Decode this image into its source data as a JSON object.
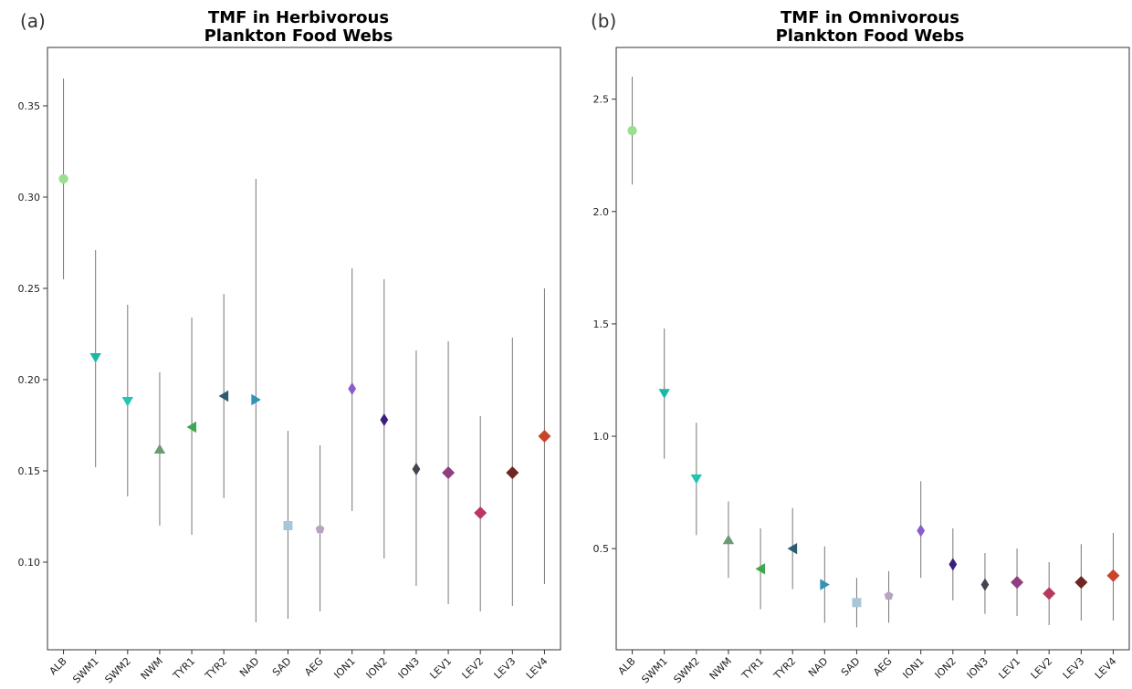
{
  "chart_data": [
    {
      "type": "scatter",
      "panel_label": "(a)",
      "title_lines": [
        "TMF in Herbivorous",
        "Plankton Food Webs"
      ],
      "xlabel": "",
      "ylabel": "",
      "ylim": [
        0.052,
        0.382
      ],
      "yticks": [
        0.1,
        0.15,
        0.2,
        0.25,
        0.3,
        0.35
      ],
      "ytick_labels": [
        "0.10",
        "0.15",
        "0.20",
        "0.25",
        "0.30",
        "0.35"
      ],
      "grid": false,
      "categories": [
        "ALB",
        "SWM1",
        "SWM2",
        "NWM",
        "TYR1",
        "TYR2",
        "NAD",
        "SAD",
        "AEG",
        "ION1",
        "ION2",
        "ION3",
        "LEV1",
        "LEV2",
        "LEV3",
        "LEV4"
      ],
      "points": [
        {
          "category": "ALB",
          "y": 0.31,
          "low": 0.255,
          "high": 0.365,
          "color": "#98e08f",
          "marker": "circle"
        },
        {
          "category": "SWM1",
          "y": 0.212,
          "low": 0.152,
          "high": 0.271,
          "color": "#1ab8a6",
          "marker": "triangle-down"
        },
        {
          "category": "SWM2",
          "y": 0.188,
          "low": 0.136,
          "high": 0.241,
          "color": "#21c6b0",
          "marker": "triangle-down"
        },
        {
          "category": "NWM",
          "y": 0.162,
          "low": 0.12,
          "high": 0.204,
          "color": "#6c9a72",
          "marker": "triangle-up"
        },
        {
          "category": "TYR1",
          "y": 0.174,
          "low": 0.115,
          "high": 0.234,
          "color": "#3fa84f",
          "marker": "triangle-left"
        },
        {
          "category": "TYR2",
          "y": 0.191,
          "low": 0.135,
          "high": 0.247,
          "color": "#2c5e72",
          "marker": "triangle-left"
        },
        {
          "category": "NAD",
          "y": 0.189,
          "low": 0.067,
          "high": 0.31,
          "color": "#3194b6",
          "marker": "triangle-right"
        },
        {
          "category": "SAD",
          "y": 0.12,
          "low": 0.069,
          "high": 0.172,
          "color": "#a8c6d8",
          "marker": "square"
        },
        {
          "category": "AEG",
          "y": 0.118,
          "low": 0.073,
          "high": 0.164,
          "color": "#b8a4be",
          "marker": "pentagon"
        },
        {
          "category": "ION1",
          "y": 0.195,
          "low": 0.128,
          "high": 0.261,
          "color": "#8a5ccc",
          "marker": "thin-diamond"
        },
        {
          "category": "ION2",
          "y": 0.178,
          "low": 0.102,
          "high": 0.255,
          "color": "#3b1f7e",
          "marker": "thin-diamond"
        },
        {
          "category": "ION3",
          "y": 0.151,
          "low": 0.087,
          "high": 0.216,
          "color": "#444450",
          "marker": "thin-diamond"
        },
        {
          "category": "LEV1",
          "y": 0.149,
          "low": 0.077,
          "high": 0.221,
          "color": "#8e3f80",
          "marker": "diamond"
        },
        {
          "category": "LEV2",
          "y": 0.127,
          "low": 0.073,
          "high": 0.18,
          "color": "#b8385e",
          "marker": "diamond"
        },
        {
          "category": "LEV3",
          "y": 0.149,
          "low": 0.076,
          "high": 0.223,
          "color": "#6e2620",
          "marker": "diamond"
        },
        {
          "category": "LEV4",
          "y": 0.169,
          "low": 0.088,
          "high": 0.25,
          "color": "#c8452c",
          "marker": "diamond"
        }
      ]
    },
    {
      "type": "scatter",
      "panel_label": "(b)",
      "title_lines": [
        "TMF in Omnivorous",
        "Plankton Food Webs"
      ],
      "xlabel": "",
      "ylabel": "",
      "ylim": [
        0.05,
        2.73
      ],
      "yticks": [
        0.5,
        1.0,
        1.5,
        2.0,
        2.5
      ],
      "ytick_labels": [
        "0.5",
        "1.0",
        "1.5",
        "2.0",
        "2.5"
      ],
      "grid": false,
      "categories": [
        "ALB",
        "SWM1",
        "SWM2",
        "NWM",
        "TYR1",
        "TYR2",
        "NAD",
        "SAD",
        "AEG",
        "ION1",
        "ION2",
        "ION3",
        "LEV1",
        "LEV2",
        "LEV3",
        "LEV4"
      ],
      "points": [
        {
          "category": "ALB",
          "y": 2.36,
          "low": 2.12,
          "high": 2.6,
          "color": "#98e08f",
          "marker": "circle"
        },
        {
          "category": "SWM1",
          "y": 1.19,
          "low": 0.9,
          "high": 1.48,
          "color": "#1ab8a6",
          "marker": "triangle-down"
        },
        {
          "category": "SWM2",
          "y": 0.81,
          "low": 0.56,
          "high": 1.06,
          "color": "#21c6b0",
          "marker": "triangle-down"
        },
        {
          "category": "NWM",
          "y": 0.54,
          "low": 0.37,
          "high": 0.71,
          "color": "#6c9a72",
          "marker": "triangle-up"
        },
        {
          "category": "TYR1",
          "y": 0.41,
          "low": 0.23,
          "high": 0.59,
          "color": "#3fa84f",
          "marker": "triangle-left"
        },
        {
          "category": "TYR2",
          "y": 0.5,
          "low": 0.32,
          "high": 0.68,
          "color": "#2c5e72",
          "marker": "triangle-left"
        },
        {
          "category": "NAD",
          "y": 0.34,
          "low": 0.17,
          "high": 0.51,
          "color": "#3194b6",
          "marker": "triangle-right"
        },
        {
          "category": "SAD",
          "y": 0.26,
          "low": 0.15,
          "high": 0.37,
          "color": "#a8c6d8",
          "marker": "square"
        },
        {
          "category": "AEG",
          "y": 0.29,
          "low": 0.17,
          "high": 0.4,
          "color": "#b8a4be",
          "marker": "pentagon"
        },
        {
          "category": "ION1",
          "y": 0.58,
          "low": 0.37,
          "high": 0.8,
          "color": "#8a5ccc",
          "marker": "thin-diamond"
        },
        {
          "category": "ION2",
          "y": 0.43,
          "low": 0.27,
          "high": 0.59,
          "color": "#3b1f7e",
          "marker": "thin-diamond"
        },
        {
          "category": "ION3",
          "y": 0.34,
          "low": 0.21,
          "high": 0.48,
          "color": "#444450",
          "marker": "thin-diamond"
        },
        {
          "category": "LEV1",
          "y": 0.35,
          "low": 0.2,
          "high": 0.5,
          "color": "#8e3f80",
          "marker": "diamond"
        },
        {
          "category": "LEV2",
          "y": 0.3,
          "low": 0.16,
          "high": 0.44,
          "color": "#b8385e",
          "marker": "diamond"
        },
        {
          "category": "LEV3",
          "y": 0.35,
          "low": 0.18,
          "high": 0.52,
          "color": "#6e2620",
          "marker": "diamond"
        },
        {
          "category": "LEV4",
          "y": 0.38,
          "low": 0.18,
          "high": 0.57,
          "color": "#c8452c",
          "marker": "diamond"
        }
      ]
    }
  ]
}
